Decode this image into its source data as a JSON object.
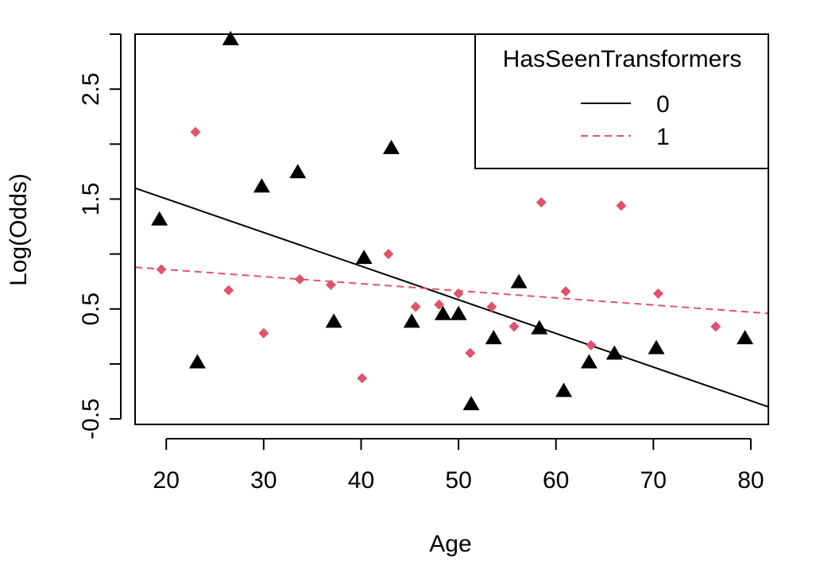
{
  "chart_data": {
    "type": "scatter",
    "title": "",
    "xlabel": "Age",
    "ylabel": "Log(Odds)",
    "xlim": [
      16.8,
      81.8
    ],
    "ylim": [
      -0.55,
      3.0
    ],
    "x_ticks": [
      {
        "value": 20,
        "label": "20"
      },
      {
        "value": 30,
        "label": "30"
      },
      {
        "value": 40,
        "label": "40"
      },
      {
        "value": 50,
        "label": "50"
      },
      {
        "value": 60,
        "label": "60"
      },
      {
        "value": 70,
        "label": "70"
      },
      {
        "value": 80,
        "label": "80"
      }
    ],
    "y_ticks": [
      {
        "value": -0.5,
        "label": "-0.5"
      },
      {
        "value": 0,
        "label": ""
      },
      {
        "value": 0.5,
        "label": "0.5"
      },
      {
        "value": 1,
        "label": ""
      },
      {
        "value": 1.5,
        "label": "1.5"
      },
      {
        "value": 2,
        "label": ""
      },
      {
        "value": 2.5,
        "label": "2.5"
      },
      {
        "value": 3,
        "label": ""
      }
    ],
    "grid": false,
    "legend": {
      "title": "HasSeenTransformers",
      "placement": "top-right"
    },
    "series": [
      {
        "name": "0",
        "color": "#000000",
        "marker": "triangle",
        "line_style": "solid",
        "points": [
          {
            "x": 19.3,
            "y": 1.31
          },
          {
            "x": 23.2,
            "y": 0.01
          },
          {
            "x": 26.6,
            "y": 2.95
          },
          {
            "x": 29.8,
            "y": 1.61
          },
          {
            "x": 33.5,
            "y": 1.74
          },
          {
            "x": 37.2,
            "y": 0.38
          },
          {
            "x": 40.3,
            "y": 0.96
          },
          {
            "x": 43.1,
            "y": 1.96
          },
          {
            "x": 45.2,
            "y": 0.38
          },
          {
            "x": 48.4,
            "y": 0.45
          },
          {
            "x": 50.0,
            "y": 0.45
          },
          {
            "x": 51.3,
            "y": -0.37
          },
          {
            "x": 53.6,
            "y": 0.23
          },
          {
            "x": 56.2,
            "y": 0.74
          },
          {
            "x": 58.3,
            "y": 0.32
          },
          {
            "x": 60.8,
            "y": -0.25
          },
          {
            "x": 63.4,
            "y": 0.01
          },
          {
            "x": 66.0,
            "y": 0.09
          },
          {
            "x": 70.3,
            "y": 0.14
          },
          {
            "x": 79.4,
            "y": 0.23
          }
        ],
        "fit": {
          "x": [
            16.8,
            81.8
          ],
          "y": [
            1.6,
            -0.39
          ]
        }
      },
      {
        "name": "1",
        "color": "#DF536B",
        "marker": "diamond",
        "line_style": "dashed",
        "points": [
          {
            "x": 19.5,
            "y": 0.86
          },
          {
            "x": 23.0,
            "y": 2.11
          },
          {
            "x": 26.4,
            "y": 0.67
          },
          {
            "x": 30.0,
            "y": 0.28
          },
          {
            "x": 33.7,
            "y": 0.77
          },
          {
            "x": 36.9,
            "y": 0.72
          },
          {
            "x": 40.1,
            "y": -0.13
          },
          {
            "x": 42.8,
            "y": 1.0
          },
          {
            "x": 45.6,
            "y": 0.52
          },
          {
            "x": 48.0,
            "y": 0.54
          },
          {
            "x": 50.0,
            "y": 0.64
          },
          {
            "x": 51.2,
            "y": 0.1
          },
          {
            "x": 53.4,
            "y": 0.52
          },
          {
            "x": 55.7,
            "y": 0.34
          },
          {
            "x": 58.5,
            "y": 1.47
          },
          {
            "x": 61.0,
            "y": 0.66
          },
          {
            "x": 63.6,
            "y": 0.17
          },
          {
            "x": 66.7,
            "y": 1.44
          },
          {
            "x": 70.5,
            "y": 0.64
          },
          {
            "x": 76.4,
            "y": 0.34
          }
        ],
        "fit": {
          "x": [
            16.8,
            81.8
          ],
          "y": [
            0.88,
            0.46
          ]
        }
      }
    ]
  }
}
